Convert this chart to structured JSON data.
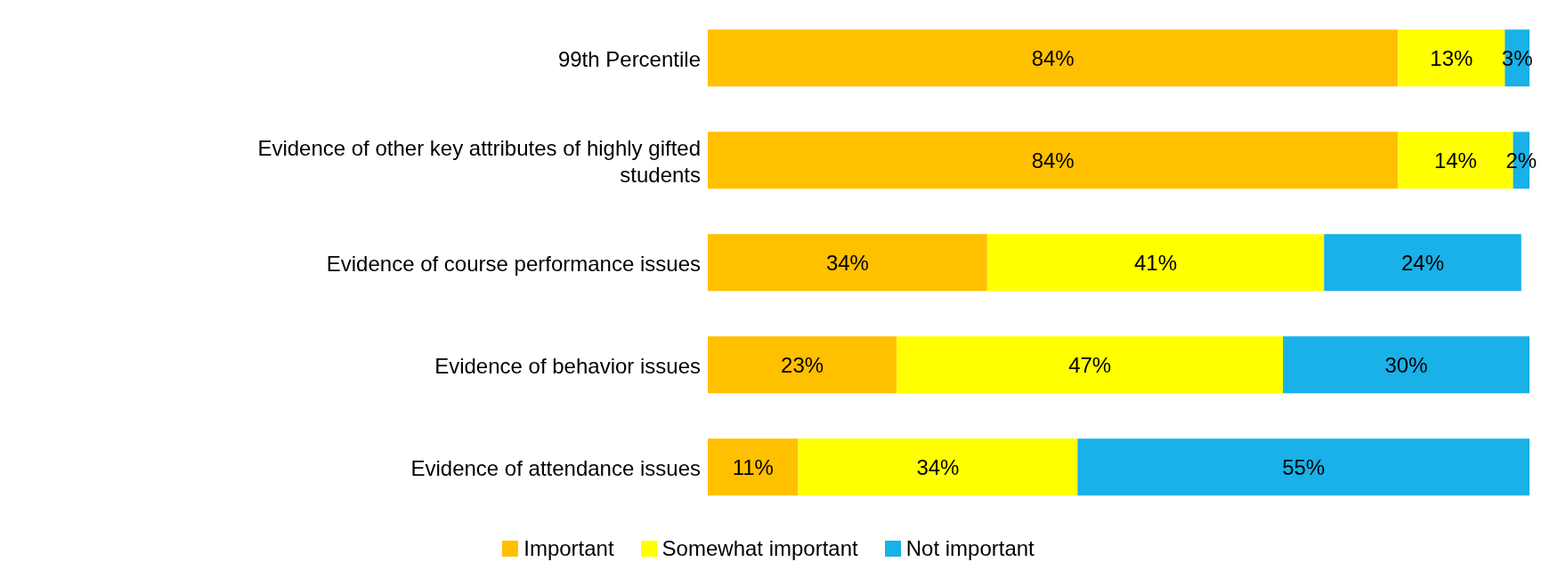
{
  "chart_data": {
    "type": "bar",
    "orientation": "horizontal",
    "stacked": true,
    "legend": "bottom",
    "grid": false,
    "categories": [
      "99th Percentile",
      "Evidence of other key attributes of highly gifted students",
      "Evidence of course performance issues",
      "Evidence of behavior issues",
      "Evidence of attendance issues"
    ],
    "series": [
      {
        "name": "Important",
        "color": "#ffc000",
        "values": [
          84,
          84,
          34,
          23,
          11
        ],
        "value_labels": [
          "84%",
          "84%",
          "34%",
          "23%",
          "11%"
        ]
      },
      {
        "name": "Somewhat important",
        "color": "#ffff00",
        "values": [
          13,
          14,
          41,
          47,
          34
        ],
        "value_labels": [
          "13%",
          "14%",
          "41%",
          "47%",
          "34%"
        ]
      },
      {
        "name": "Not important",
        "color": "#1ab0e8",
        "values": [
          3,
          2,
          24,
          30,
          55
        ],
        "value_labels": [
          "3%",
          "2%",
          "24%",
          "30%",
          "55%"
        ]
      }
    ]
  }
}
